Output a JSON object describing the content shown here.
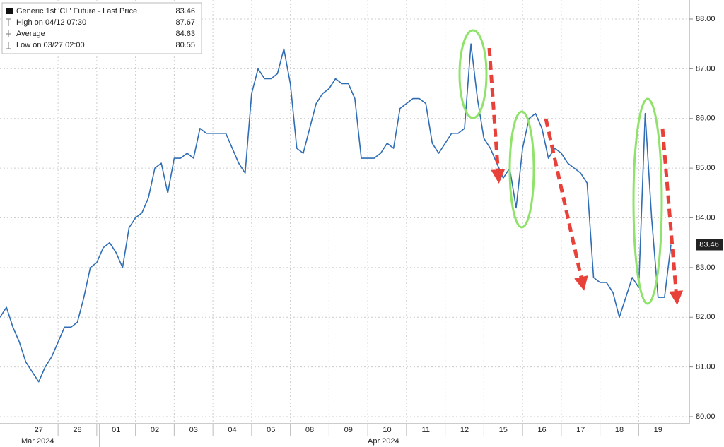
{
  "chart_data": {
    "type": "line",
    "legend": "upper left",
    "grid": true,
    "x_groups": [
      "Mar 2024",
      "Apr 2024"
    ],
    "categories": [
      null,
      null,
      null,
      null,
      null,
      null,
      "27",
      null,
      null,
      null,
      null,
      null,
      "28",
      null,
      null,
      null,
      null,
      null,
      "01",
      null,
      null,
      null,
      null,
      null,
      "02",
      null,
      null,
      null,
      null,
      null,
      "03",
      null,
      null,
      null,
      null,
      null,
      "04",
      null,
      null,
      null,
      null,
      null,
      "05",
      null,
      null,
      null,
      null,
      null,
      "08",
      null,
      null,
      null,
      null,
      null,
      "09",
      null,
      null,
      null,
      null,
      null,
      "10",
      null,
      null,
      null,
      null,
      null,
      "11",
      null,
      null,
      null,
      null,
      null,
      "12",
      null,
      null,
      null,
      null,
      null,
      "15",
      null,
      null,
      null,
      null,
      null,
      "16",
      null,
      null,
      null,
      null,
      null,
      "17",
      null,
      null,
      null,
      null,
      null,
      "18",
      null,
      null,
      null,
      null,
      null,
      "19",
      null,
      null
    ],
    "series": [
      {
        "name": "Generic 1st 'CL' Future - Last Price",
        "color": "#2f6db5",
        "values": [
          82.0,
          82.2,
          81.8,
          81.5,
          81.1,
          80.9,
          80.7,
          81.0,
          81.2,
          81.5,
          81.8,
          81.8,
          81.9,
          82.4,
          83.0,
          83.1,
          83.4,
          83.5,
          83.3,
          83.0,
          83.8,
          84.0,
          84.1,
          84.4,
          85.0,
          85.1,
          84.5,
          85.2,
          85.2,
          85.3,
          85.2,
          85.8,
          85.7,
          85.7,
          85.7,
          85.7,
          85.4,
          85.1,
          84.9,
          86.5,
          87.0,
          86.8,
          86.8,
          86.9,
          87.4,
          86.7,
          85.4,
          85.3,
          85.8,
          86.3,
          86.5,
          86.6,
          86.8,
          86.7,
          86.7,
          86.4,
          85.2,
          85.2,
          85.2,
          85.3,
          85.5,
          85.4,
          86.2,
          86.3,
          86.4,
          86.4,
          86.3,
          85.5,
          85.3,
          85.5,
          85.7,
          85.7,
          85.8,
          87.5,
          86.4,
          85.6,
          85.4,
          85.1,
          84.8,
          85.0,
          84.2,
          85.4,
          86.0,
          86.1,
          85.8,
          85.2,
          85.4,
          85.3,
          85.1,
          85.0,
          84.9,
          84.7,
          82.8,
          82.7,
          82.7,
          82.5,
          82.0,
          82.4,
          82.8,
          82.6,
          86.1,
          84.0,
          82.4,
          82.4,
          83.46
        ]
      }
    ],
    "last_price": 83.46,
    "stats": [
      {
        "label": "High on 04/12 07:30",
        "value": 87.67
      },
      {
        "label": "Average",
        "value": 84.63
      },
      {
        "label": "Low on 03/27 02:00",
        "value": 80.55
      }
    ],
    "ylim": [
      80,
      88
    ],
    "yticks": [
      {
        "value": 80,
        "label": "80.00"
      },
      {
        "value": 81,
        "label": "81.00"
      },
      {
        "value": 82,
        "label": "82.00"
      },
      {
        "value": 83,
        "label": "83.00"
      },
      {
        "value": 84,
        "label": "84.00"
      },
      {
        "value": 85,
        "label": "85.00"
      },
      {
        "value": 86,
        "label": "86.00"
      },
      {
        "value": 87,
        "label": "87.00"
      },
      {
        "value": 88,
        "label": "88.00"
      }
    ]
  }
}
